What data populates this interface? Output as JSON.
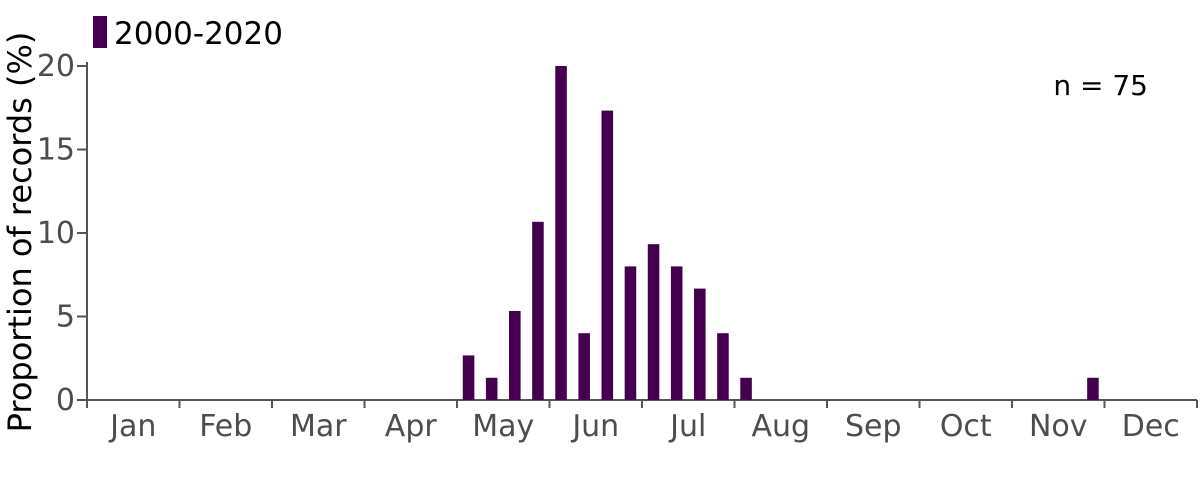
{
  "chart_data": {
    "type": "bar",
    "ylabel": "Proportion of records (%)",
    "xlabel": "",
    "ylim": [
      0,
      20
    ],
    "yticks": [
      0,
      5,
      10,
      15,
      20
    ],
    "months": [
      "Jan",
      "Feb",
      "Mar",
      "Apr",
      "May",
      "Jun",
      "Jul",
      "Aug",
      "Sep",
      "Oct",
      "Nov",
      "Dec"
    ],
    "bars_per_month": 4,
    "series": [
      {
        "name": "2000-2020",
        "color": "#44004f",
        "values": [
          0,
          0,
          0,
          0,
          0,
          0,
          0,
          0,
          0,
          0,
          0,
          0,
          0,
          0,
          0,
          0,
          2.67,
          1.33,
          5.33,
          10.67,
          20,
          4,
          17.33,
          8,
          9.33,
          8,
          6.67,
          4,
          1.33,
          0,
          0,
          0,
          0,
          0,
          0,
          0,
          0,
          0,
          0,
          0,
          0,
          0,
          0,
          1.33,
          0,
          0,
          0,
          0
        ]
      }
    ],
    "annotation": "n = 75",
    "legend_position": "top-left",
    "grid": false
  }
}
